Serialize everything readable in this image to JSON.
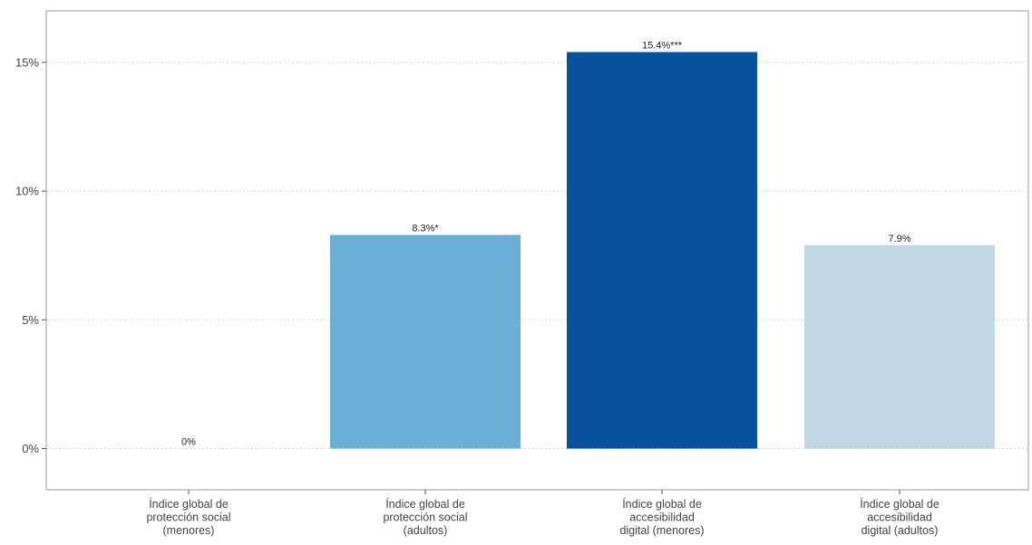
{
  "chart_data": {
    "type": "bar",
    "categories": [
      [
        "Índice global de",
        "protección social",
        "(menores)"
      ],
      [
        "Índice global de",
        "protección social",
        "(adultos)"
      ],
      [
        "Índice global de",
        "accesibilidad",
        "digital (menores)"
      ],
      [
        "Índice global de",
        "accesibilidad",
        "digital (adultos)"
      ]
    ],
    "values": [
      0,
      8.3,
      15.4,
      7.9
    ],
    "data_labels": [
      "0%",
      "8.3%*",
      "15.4%***",
      "7.9%"
    ],
    "colors": [
      "#ffffff",
      "#6baed6",
      "#08519c",
      "#c0d8e6"
    ],
    "yticks": [
      0,
      5,
      10,
      15
    ],
    "ytick_labels": [
      "0%",
      "5%",
      "10%",
      "15%"
    ],
    "ylim": [
      -1.6,
      17
    ],
    "grid": true,
    "legend": false,
    "title": "",
    "xlabel": "",
    "ylabel": ""
  }
}
